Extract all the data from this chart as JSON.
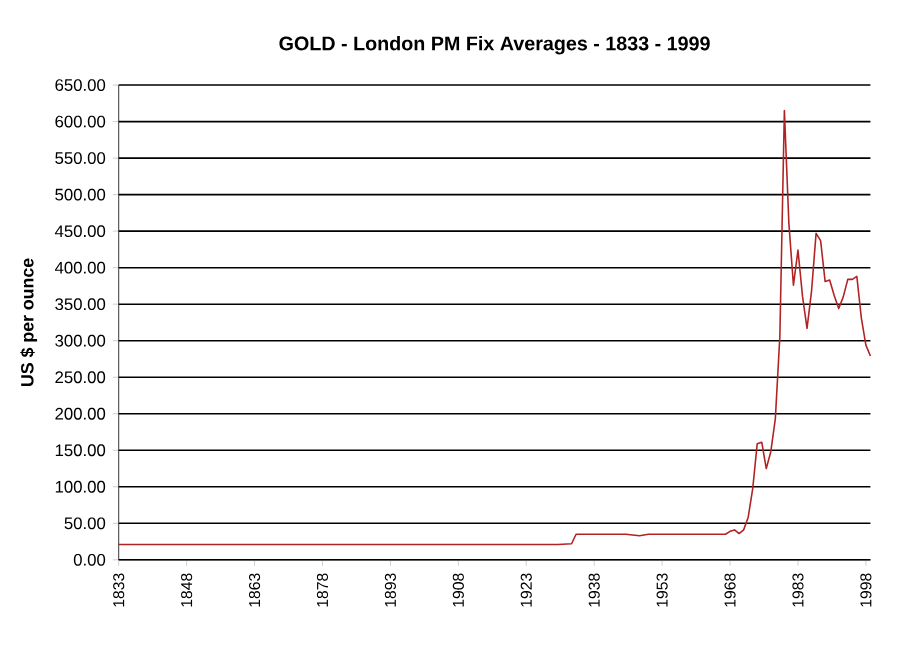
{
  "chart_data": {
    "type": "line",
    "title": "GOLD  -  London PM Fix Averages  -   1833 - 1999",
    "ylabel": "US $ per ounce",
    "x": [
      1833,
      1850,
      1870,
      1890,
      1910,
      1930,
      1933,
      1934,
      1935,
      1940,
      1945,
      1948,
      1950,
      1955,
      1960,
      1965,
      1967,
      1968,
      1969,
      1970,
      1971,
      1972,
      1973,
      1974,
      1975,
      1976,
      1977,
      1978,
      1979,
      1980,
      1981,
      1982,
      1983,
      1984,
      1985,
      1986,
      1987,
      1988,
      1989,
      1990,
      1991,
      1992,
      1993,
      1994,
      1995,
      1996,
      1997,
      1998,
      1999
    ],
    "series": [
      {
        "color": "#b22222",
        "values": [
          21,
          21,
          21,
          21,
          21,
          21,
          22,
          35,
          35,
          35,
          35,
          33,
          35,
          35,
          35,
          35,
          35,
          39,
          41,
          36,
          41,
          58,
          97,
          159,
          161,
          125,
          148,
          193,
          306,
          615,
          460,
          376,
          424,
          361,
          317,
          368,
          447,
          437,
          381,
          383,
          362,
          344,
          360,
          384,
          384,
          388,
          331,
          294,
          279
        ]
      }
    ],
    "xlim": [
      1833,
      1999
    ],
    "xticks": [
      1833,
      1848,
      1863,
      1878,
      1893,
      1908,
      1923,
      1938,
      1953,
      1968,
      1983,
      1998
    ],
    "ylim": [
      0,
      650
    ],
    "yticks": [
      {
        "value": 0,
        "label": "0.00"
      },
      {
        "value": 50,
        "label": "50.00"
      },
      {
        "value": 100,
        "label": "100.00"
      },
      {
        "value": 150,
        "label": "150.00"
      },
      {
        "value": 200,
        "label": "200.00"
      },
      {
        "value": 250,
        "label": "250.00"
      },
      {
        "value": 300,
        "label": "300.00"
      },
      {
        "value": 350,
        "label": "350.00"
      },
      {
        "value": 400,
        "label": "400.00"
      },
      {
        "value": 450,
        "label": "450.00"
      },
      {
        "value": 500,
        "label": "500.00"
      },
      {
        "value": 550,
        "label": "550.00"
      },
      {
        "value": 600,
        "label": "600.00"
      },
      {
        "value": 650,
        "label": "650.00"
      }
    ],
    "grid": "y",
    "marker": "none",
    "line_style": "solid"
  }
}
